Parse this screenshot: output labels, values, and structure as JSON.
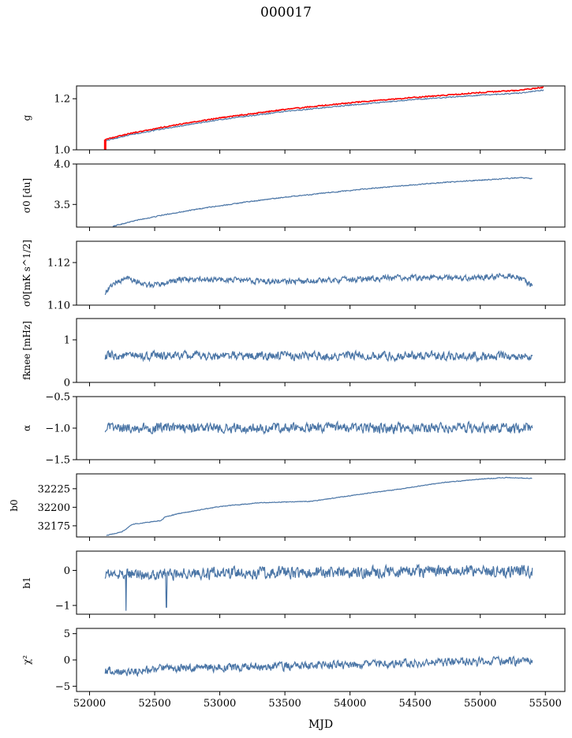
{
  "figure": {
    "title": "000017",
    "xlabel": "MJD"
  },
  "colors": {
    "series": "#4a75a6",
    "reference": "#ff0000",
    "axes": "#000000"
  },
  "chart_data": [
    {
      "type": "line",
      "ylabel": "g",
      "xlim": [
        51900,
        55650
      ],
      "ylim": [
        1.0,
        1.25
      ],
      "yticks": [
        1.0,
        1.2
      ],
      "ytick_labels": [
        "1.0",
        "1.2"
      ],
      "x_start": 52120,
      "x_end": 55490,
      "series": [
        {
          "color": "#4a75a6",
          "x": [
            52120,
            52300,
            52600,
            53000,
            53500,
            54000,
            54500,
            55000,
            55300,
            55490
          ],
          "y": [
            1.035,
            1.058,
            1.085,
            1.118,
            1.15,
            1.175,
            1.197,
            1.214,
            1.222,
            1.234
          ]
        },
        {
          "color": "#ff0000",
          "x": [
            52120,
            52300,
            52600,
            53000,
            53500,
            54000,
            54500,
            55000,
            55300,
            55490
          ],
          "y": [
            1.04,
            1.063,
            1.092,
            1.125,
            1.158,
            1.184,
            1.205,
            1.224,
            1.233,
            1.245
          ]
        }
      ],
      "annotations": [
        "red vertical segment at x≈52120 from 1.0 to 1.04"
      ]
    },
    {
      "type": "line",
      "ylabel": "σ0 [du]",
      "xlim": [
        51900,
        55650
      ],
      "ylim": [
        3.22,
        4.0
      ],
      "yticks": [
        3.5,
        4.0
      ],
      "ytick_labels": [
        "3.5",
        "4.0"
      ],
      "x_start": 52180,
      "x_end": 55400,
      "trend": {
        "x": [
          52180,
          52350,
          52600,
          52900,
          53200,
          53500,
          53800,
          54100,
          54400,
          54700,
          55000,
          55300,
          55400
        ],
        "y": [
          3.23,
          3.3,
          3.38,
          3.46,
          3.53,
          3.59,
          3.64,
          3.69,
          3.73,
          3.77,
          3.8,
          3.83,
          3.82
        ]
      },
      "noise": 0.005
    },
    {
      "type": "line",
      "ylabel": "σ0[mK s^1/2]",
      "xlim": [
        51900,
        55650
      ],
      "ylim": [
        1.1,
        1.13
      ],
      "yticks": [
        1.1,
        1.12
      ],
      "ytick_labels": [
        "1.10",
        "1.12"
      ],
      "x_start": 52120,
      "x_end": 55400,
      "trend": {
        "x": [
          52120,
          52180,
          52300,
          52450,
          52700,
          53000,
          53500,
          54000,
          54500,
          55000,
          55250,
          55350,
          55400
        ],
        "y": [
          1.106,
          1.11,
          1.113,
          1.109,
          1.112,
          1.112,
          1.111,
          1.112,
          1.113,
          1.113,
          1.114,
          1.111,
          1.109
        ]
      },
      "noise": 0.0012
    },
    {
      "type": "line",
      "ylabel": "fknee [mHz]",
      "xlim": [
        51900,
        55650
      ],
      "ylim": [
        0,
        1.5
      ],
      "yticks": [
        0,
        1
      ],
      "ytick_labels": [
        "0",
        "1"
      ],
      "x_start": 52120,
      "x_end": 55400,
      "trend": {
        "x": [
          52120,
          55400
        ],
        "y": [
          0.62,
          0.62
        ]
      },
      "noise": 0.09
    },
    {
      "type": "line",
      "ylabel": "α",
      "xlim": [
        51900,
        55650
      ],
      "ylim": [
        -1.5,
        -0.5
      ],
      "yticks": [
        -1.5,
        -1.0,
        -0.5
      ],
      "ytick_labels": [
        "−1.5",
        "−1.0",
        "−0.5"
      ],
      "x_start": 52120,
      "x_end": 55400,
      "trend": {
        "x": [
          52120,
          55400
        ],
        "y": [
          -1.0,
          -1.0
        ]
      },
      "noise": 0.07
    },
    {
      "type": "line",
      "ylabel": "b0",
      "xlim": [
        51900,
        55650
      ],
      "ylim": [
        32160,
        32245
      ],
      "yticks": [
        32175,
        32200,
        32225
      ],
      "ytick_labels": [
        "32175",
        "32200",
        "32225"
      ],
      "x_start": 52130,
      "x_end": 55400,
      "trend": {
        "x": [
          52130,
          52250,
          52330,
          52550,
          52580,
          52700,
          53000,
          53300,
          53700,
          54100,
          54400,
          54700,
          55000,
          55200,
          55400
        ],
        "y": [
          32162,
          32167,
          32177,
          32182,
          32187,
          32192,
          32201,
          32206,
          32208,
          32218,
          32225,
          32233,
          32238,
          32240,
          32239
        ]
      },
      "noise": 0.4
    },
    {
      "type": "line",
      "ylabel": "b1",
      "xlim": [
        51900,
        55650
      ],
      "ylim": [
        -1.25,
        0.55
      ],
      "yticks": [
        -1,
        0
      ],
      "ytick_labels": [
        "−1",
        "0"
      ],
      "x_start": 52120,
      "x_end": 55400,
      "trend": {
        "x": [
          52120,
          52500,
          53000,
          53500,
          54000,
          54500,
          55000,
          55400
        ],
        "y": [
          -0.1,
          -0.1,
          -0.08,
          -0.07,
          -0.05,
          -0.03,
          -0.02,
          -0.02
        ]
      },
      "noise": 0.15,
      "spikes": [
        {
          "x": 52280,
          "y": -1.15
        },
        {
          "x": 52590,
          "y": -1.05
        }
      ]
    },
    {
      "type": "line",
      "ylabel": "χ²",
      "xlim": [
        51900,
        55650
      ],
      "ylim": [
        -6,
        6
      ],
      "yticks": [
        -5,
        0,
        5
      ],
      "ytick_labels": [
        "−5",
        "0",
        "5"
      ],
      "x_start": 52120,
      "x_end": 55400,
      "trend": {
        "x": [
          52120,
          52300,
          52700,
          53200,
          53800,
          54400,
          55000,
          55400
        ],
        "y": [
          -2.0,
          -2.2,
          -1.5,
          -1.4,
          -1.1,
          -0.6,
          -0.3,
          -0.3
        ]
      },
      "noise": 0.7
    }
  ],
  "xaxis": {
    "ticks": [
      52000,
      52500,
      53000,
      53500,
      54000,
      54500,
      55000,
      55500
    ],
    "tick_labels": [
      "52000",
      "52500",
      "53000",
      "53500",
      "54000",
      "54500",
      "55000",
      "55500"
    ]
  }
}
